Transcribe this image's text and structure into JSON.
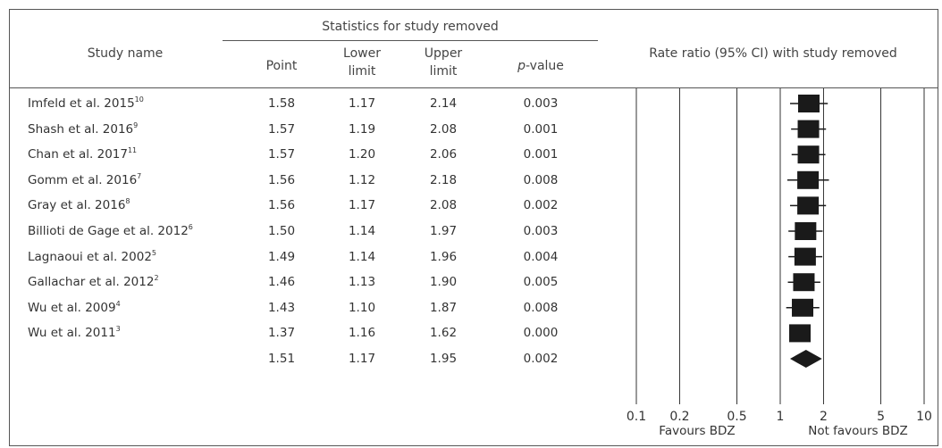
{
  "table": {
    "group_header": "Statistics for study removed",
    "col_study": "Study name",
    "col_point": "Point",
    "col_lower_1": "Lower",
    "col_lower_2": "limit",
    "col_upper_1": "Upper",
    "col_upper_2": "limit",
    "col_p_italic": "p",
    "col_p_rest": "-value",
    "plot_header": "Rate ratio (95% CI) with study removed",
    "rows": [
      {
        "name": "Imfeld et al. 2015",
        "ref": "10",
        "point": "1.58",
        "lower": "1.17",
        "upper": "2.14",
        "p": "0.003"
      },
      {
        "name": "Shash et al. 2016",
        "ref": "9",
        "point": "1.57",
        "lower": "1.19",
        "upper": "2.08",
        "p": "0.001"
      },
      {
        "name": "Chan et al. 2017",
        "ref": "11",
        "point": "1.57",
        "lower": "1.20",
        "upper": "2.06",
        "p": "0.001"
      },
      {
        "name": "Gomm et al. 2016",
        "ref": "7",
        "point": "1.56",
        "lower": "1.12",
        "upper": "2.18",
        "p": "0.008"
      },
      {
        "name": "Gray et al. 2016",
        "ref": "8",
        "point": "1.56",
        "lower": "1.17",
        "upper": "2.08",
        "p": "0.002"
      },
      {
        "name": "Billioti de Gage et al. 2012",
        "ref": "6",
        "point": "1.50",
        "lower": "1.14",
        "upper": "1.97",
        "p": "0.003"
      },
      {
        "name": "Lagnaoui et al. 2002",
        "ref": "5",
        "point": "1.49",
        "lower": "1.14",
        "upper": "1.96",
        "p": "0.004"
      },
      {
        "name": "Gallachar et al. 2012",
        "ref": "2",
        "point": "1.46",
        "lower": "1.13",
        "upper": "1.90",
        "p": "0.005"
      },
      {
        "name": "Wu et al. 2009",
        "ref": "4",
        "point": "1.43",
        "lower": "1.10",
        "upper": "1.87",
        "p": "0.008"
      },
      {
        "name": "Wu et al. 2011",
        "ref": "3",
        "point": "1.37",
        "lower": "1.16",
        "upper": "1.62",
        "p": "0.000"
      }
    ],
    "summary": {
      "point": "1.51",
      "lower": "1.17",
      "upper": "1.95",
      "p": "0.002"
    }
  },
  "chart_data": {
    "type": "forest",
    "scale": "log",
    "xlim": [
      0.1,
      10
    ],
    "x_ticks": [
      "0.1",
      "0.2",
      "0.5",
      "1",
      "2",
      "5",
      "10"
    ],
    "x_tick_values": [
      0.1,
      0.2,
      0.5,
      1,
      2,
      5,
      10
    ],
    "favours_left": "Favours BDZ",
    "favours_right": "Not favours BDZ",
    "marker_color": "#1a1a1a",
    "studies": [
      {
        "point": 1.58,
        "lower": 1.17,
        "upper": 2.14
      },
      {
        "point": 1.57,
        "lower": 1.19,
        "upper": 2.08
      },
      {
        "point": 1.57,
        "lower": 1.2,
        "upper": 2.06
      },
      {
        "point": 1.56,
        "lower": 1.12,
        "upper": 2.18
      },
      {
        "point": 1.56,
        "lower": 1.17,
        "upper": 2.08
      },
      {
        "point": 1.5,
        "lower": 1.14,
        "upper": 1.97
      },
      {
        "point": 1.49,
        "lower": 1.14,
        "upper": 1.96
      },
      {
        "point": 1.46,
        "lower": 1.13,
        "upper": 1.9
      },
      {
        "point": 1.43,
        "lower": 1.1,
        "upper": 1.87
      },
      {
        "point": 1.37,
        "lower": 1.16,
        "upper": 1.62
      }
    ],
    "summary": {
      "point": 1.51,
      "lower": 1.17,
      "upper": 1.95
    }
  }
}
